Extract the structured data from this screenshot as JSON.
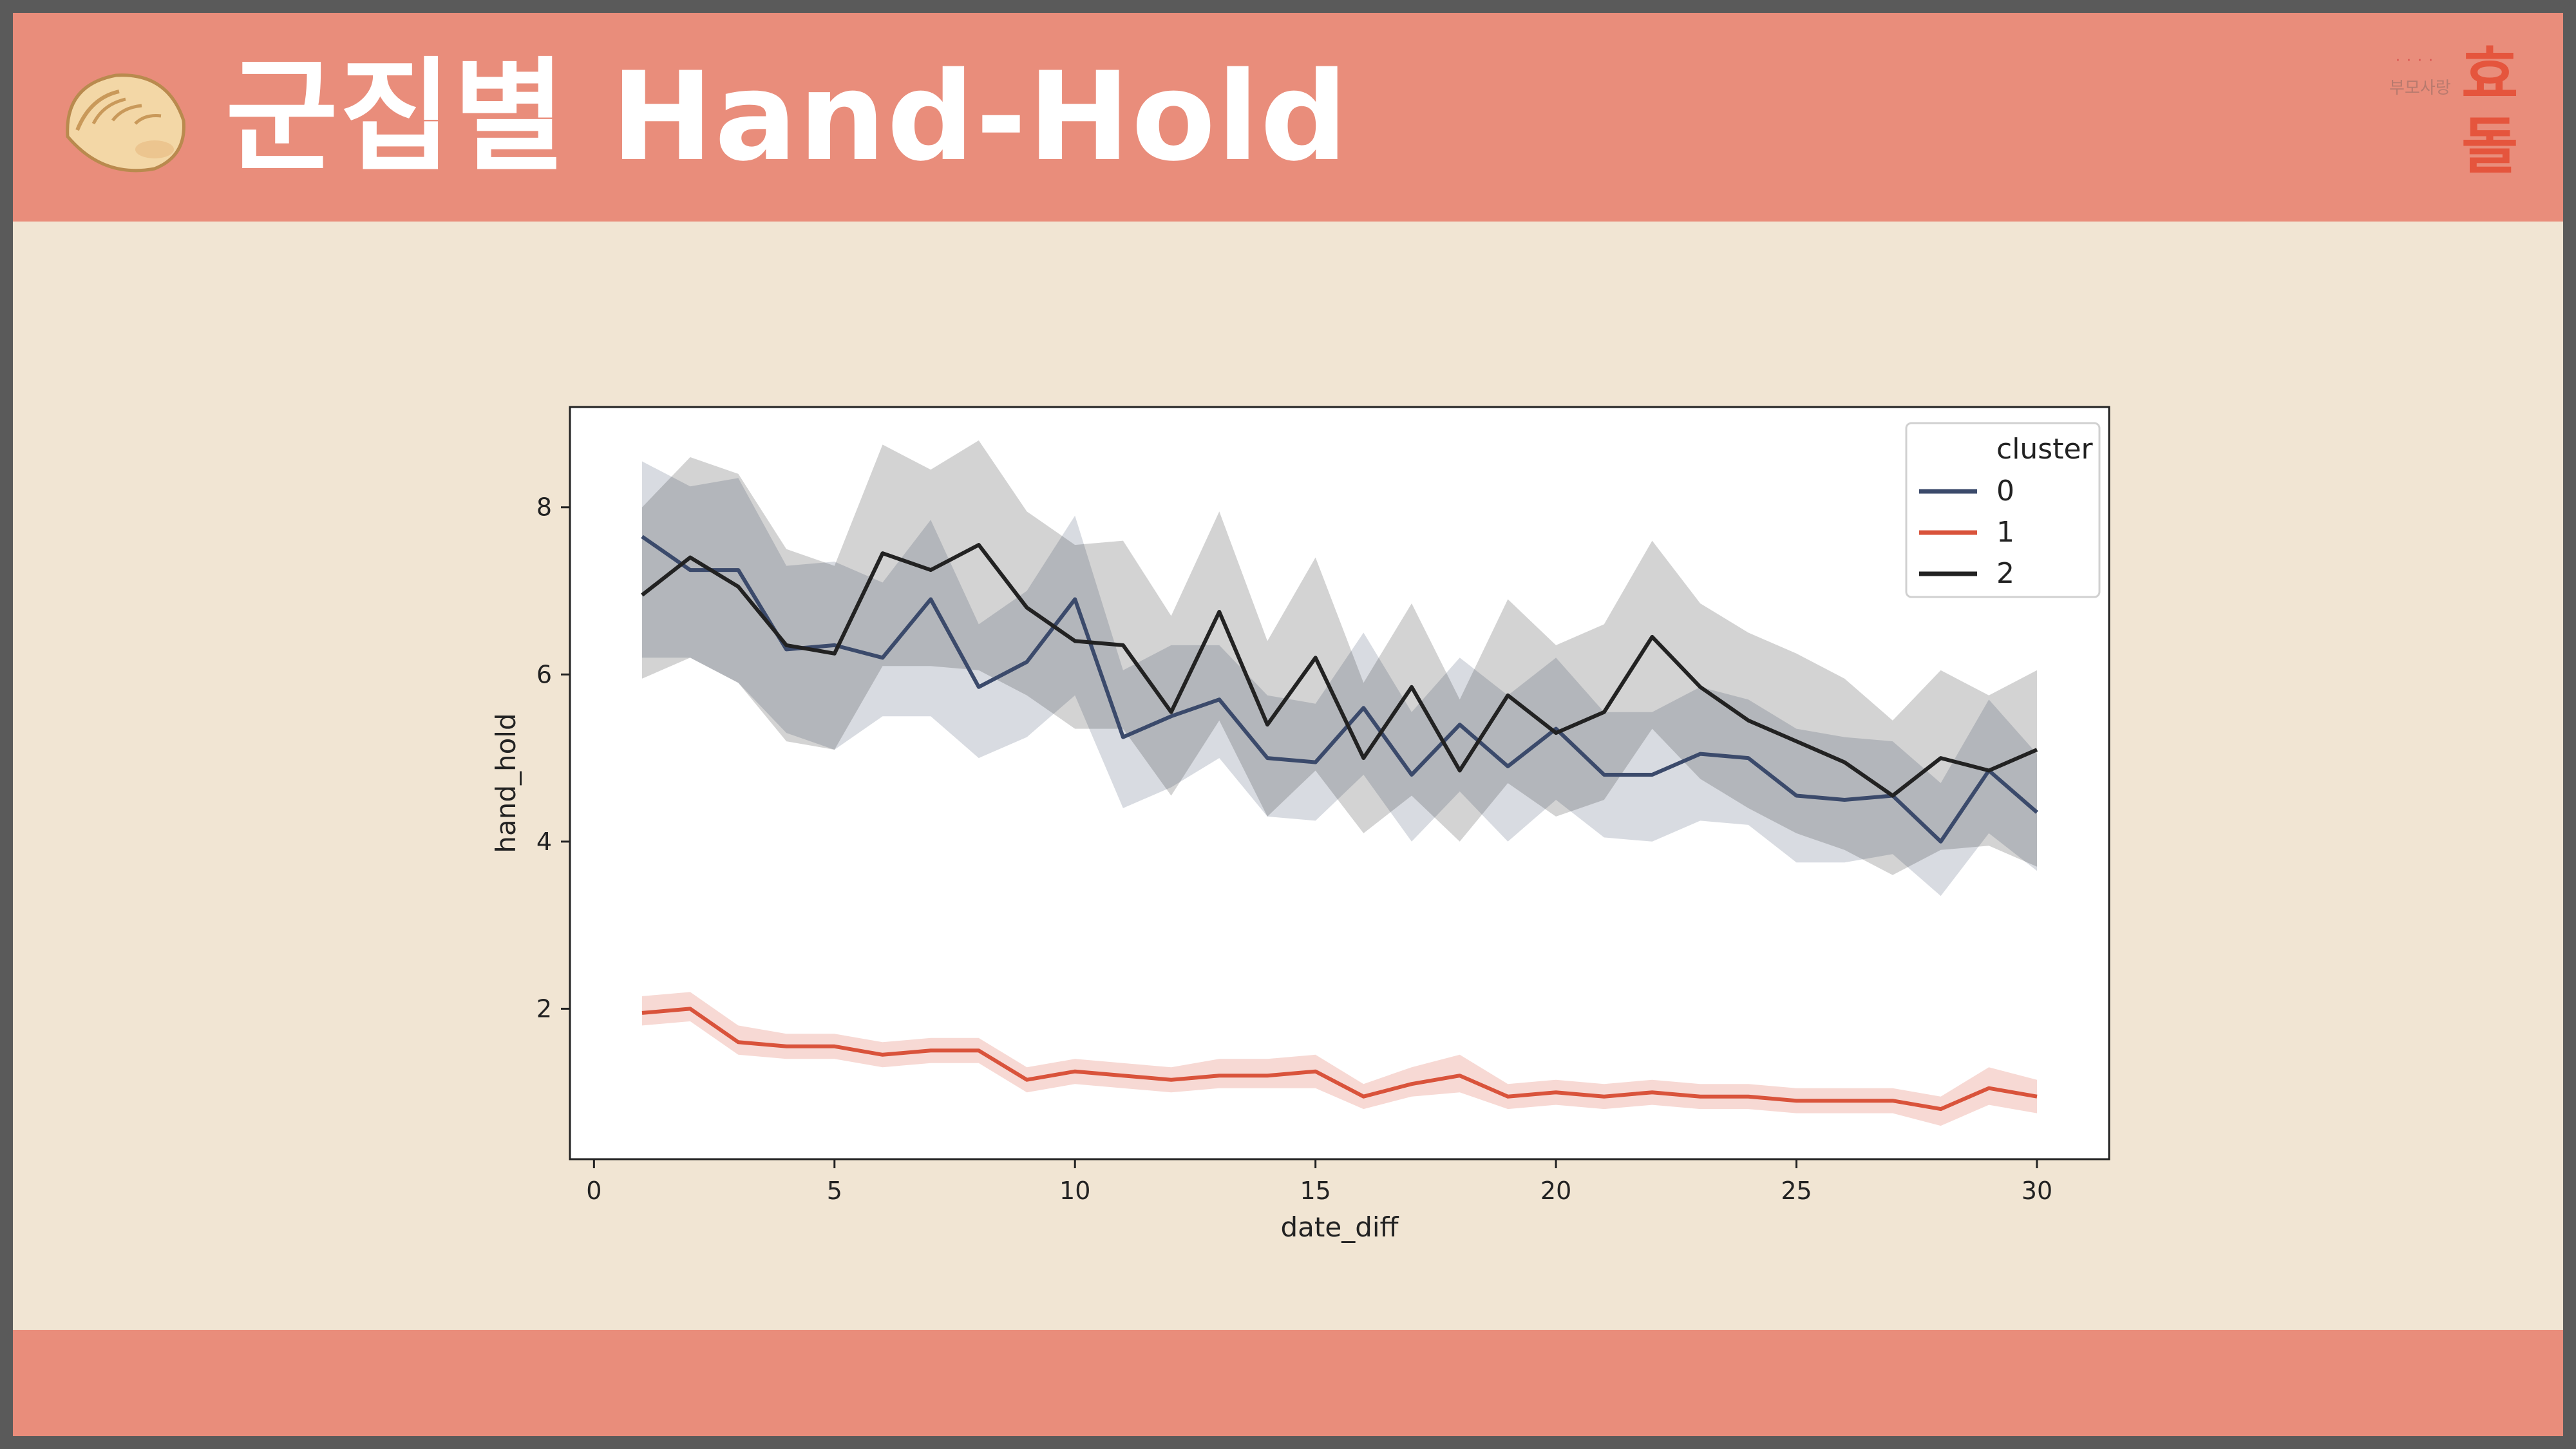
{
  "slide": {
    "title": "군집별 Hand-Hold",
    "brand": {
      "dots": "····",
      "sub": "부모사랑",
      "name": "효돌"
    }
  },
  "icons": {
    "title_icon": "dumpling-icon"
  },
  "colors": {
    "header": "#e98d7b",
    "background": "#f1e5d3",
    "series0": "#3b4a6b",
    "series1": "#d9533b",
    "series2": "#222222"
  },
  "chart_data": {
    "type": "line",
    "title": "",
    "xlabel": "date_diff",
    "ylabel": "hand_hold",
    "xlim": [
      -0.5,
      31.5
    ],
    "ylim": [
      0.2,
      9.2
    ],
    "xticks": [
      0,
      5,
      10,
      15,
      20,
      25,
      30
    ],
    "yticks": [
      2,
      4,
      6,
      8
    ],
    "grid": false,
    "legend": {
      "title": "cluster",
      "placement": "top-right"
    },
    "x": [
      1,
      2,
      3,
      4,
      5,
      6,
      7,
      8,
      9,
      10,
      11,
      12,
      13,
      14,
      15,
      16,
      17,
      18,
      19,
      20,
      21,
      22,
      23,
      24,
      25,
      26,
      27,
      28,
      29,
      30
    ],
    "series": [
      {
        "name": "0",
        "color": "#3b4a6b",
        "values": [
          7.65,
          7.25,
          7.25,
          6.3,
          6.35,
          6.2,
          6.9,
          5.85,
          6.15,
          6.9,
          5.25,
          5.5,
          5.7,
          5.0,
          4.95,
          5.6,
          4.8,
          5.4,
          4.9,
          5.35,
          4.8,
          4.8,
          5.05,
          5.0,
          4.55,
          4.5,
          4.55,
          4.0,
          4.85,
          4.35
        ],
        "ci_lower": [
          6.2,
          6.2,
          5.9,
          5.3,
          5.1,
          5.5,
          5.5,
          5.0,
          5.25,
          5.75,
          4.4,
          4.65,
          5.0,
          4.3,
          4.25,
          4.8,
          4.0,
          4.6,
          4.0,
          4.5,
          4.05,
          4.0,
          4.25,
          4.2,
          3.75,
          3.75,
          3.85,
          3.35,
          4.1,
          3.65
        ],
        "ci_upper": [
          8.55,
          8.25,
          8.35,
          7.3,
          7.35,
          7.1,
          7.85,
          6.6,
          7.0,
          7.9,
          6.05,
          6.35,
          6.35,
          5.75,
          5.65,
          6.5,
          5.55,
          6.2,
          5.75,
          6.2,
          5.55,
          5.55,
          5.85,
          5.7,
          5.35,
          5.25,
          5.2,
          4.7,
          5.7,
          5.05
        ]
      },
      {
        "name": "1",
        "color": "#d9533b",
        "values": [
          1.95,
          2.0,
          1.6,
          1.55,
          1.55,
          1.45,
          1.5,
          1.5,
          1.15,
          1.25,
          1.2,
          1.15,
          1.2,
          1.2,
          1.25,
          0.95,
          1.1,
          1.2,
          0.95,
          1.0,
          0.95,
          1.0,
          0.95,
          0.95,
          0.9,
          0.9,
          0.9,
          0.8,
          1.05,
          0.95
        ],
        "ci_lower": [
          1.8,
          1.85,
          1.45,
          1.4,
          1.4,
          1.3,
          1.35,
          1.35,
          1.0,
          1.1,
          1.05,
          1.0,
          1.05,
          1.05,
          1.05,
          0.8,
          0.95,
          1.0,
          0.8,
          0.85,
          0.8,
          0.85,
          0.8,
          0.8,
          0.75,
          0.75,
          0.75,
          0.6,
          0.85,
          0.75
        ],
        "ci_upper": [
          2.15,
          2.2,
          1.8,
          1.7,
          1.7,
          1.6,
          1.65,
          1.65,
          1.3,
          1.4,
          1.35,
          1.3,
          1.4,
          1.4,
          1.45,
          1.1,
          1.3,
          1.45,
          1.1,
          1.15,
          1.1,
          1.15,
          1.1,
          1.1,
          1.05,
          1.05,
          1.05,
          0.95,
          1.3,
          1.15
        ]
      },
      {
        "name": "2",
        "color": "#222222",
        "values": [
          6.95,
          7.4,
          7.05,
          6.35,
          6.25,
          7.45,
          7.25,
          7.55,
          6.8,
          6.4,
          6.35,
          5.55,
          6.75,
          5.4,
          6.2,
          5.0,
          5.85,
          4.85,
          5.75,
          5.3,
          5.55,
          6.45,
          5.85,
          5.45,
          5.2,
          4.95,
          4.55,
          5.0,
          4.85,
          5.1
        ],
        "ci_lower": [
          5.95,
          6.2,
          5.9,
          5.2,
          5.1,
          6.1,
          6.1,
          6.05,
          5.75,
          5.35,
          5.35,
          4.55,
          5.45,
          4.3,
          4.85,
          4.1,
          4.55,
          4.0,
          4.7,
          4.3,
          4.5,
          5.35,
          4.75,
          4.4,
          4.1,
          3.9,
          3.6,
          3.9,
          3.95,
          3.7
        ],
        "ci_upper": [
          8.0,
          8.6,
          8.4,
          7.5,
          7.3,
          8.75,
          8.45,
          8.8,
          7.95,
          7.55,
          7.6,
          6.7,
          7.95,
          6.4,
          7.4,
          5.9,
          6.85,
          5.7,
          6.9,
          6.35,
          6.6,
          7.6,
          6.85,
          6.5,
          6.25,
          5.95,
          5.45,
          6.05,
          5.75,
          6.05
        ]
      }
    ]
  }
}
